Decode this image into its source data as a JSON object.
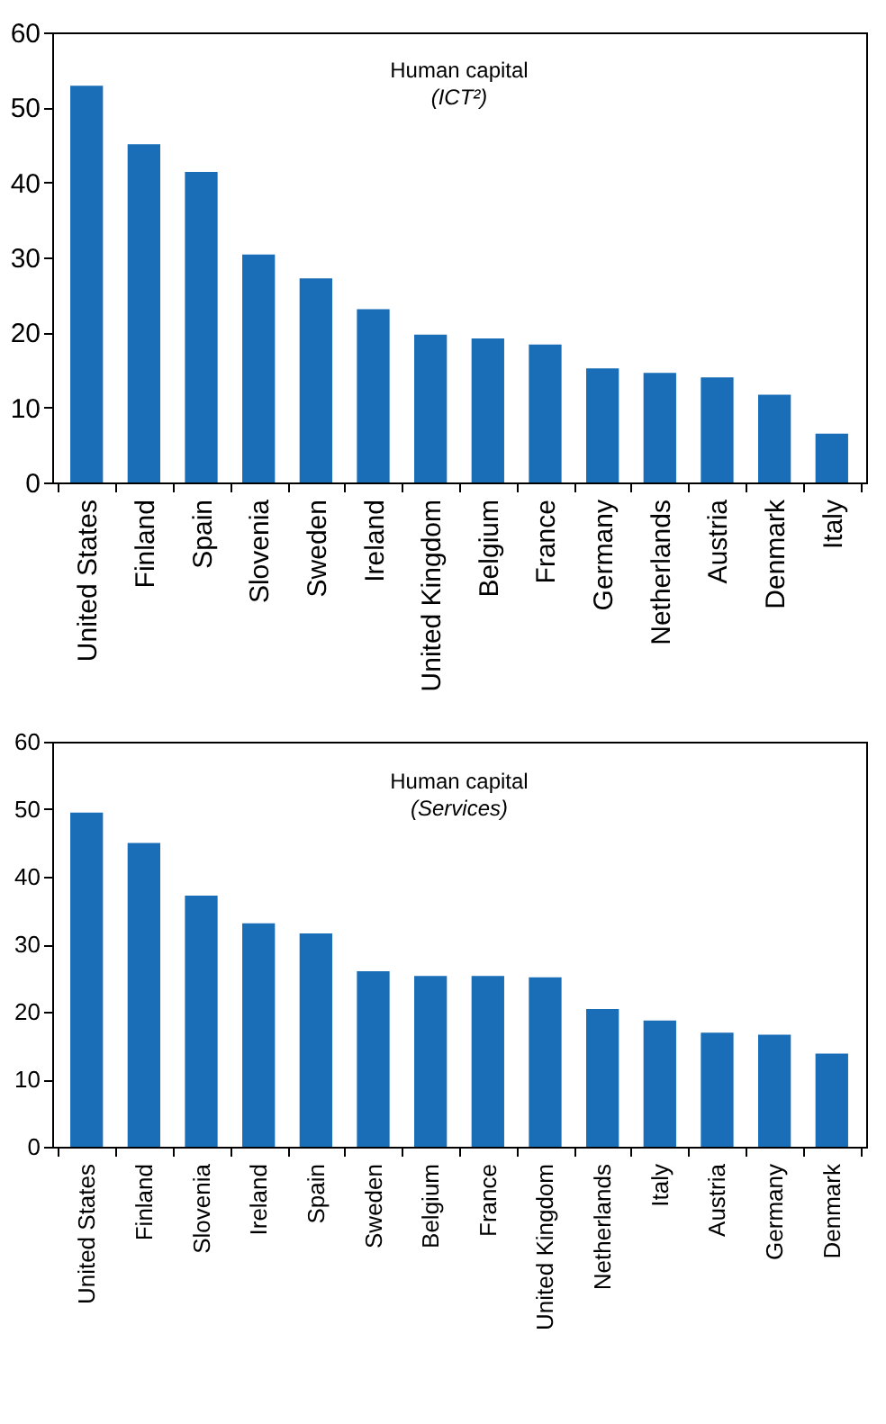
{
  "chart_data": [
    {
      "type": "bar",
      "title": "Human capital",
      "subtitle": "(ICT²)",
      "categories": [
        "United States",
        "Finland",
        "Spain",
        "Slovenia",
        "Sweden",
        "Ireland",
        "United Kingdom",
        "Belgium",
        "France",
        "Germany",
        "Netherlands",
        "Austria",
        "Denmark",
        "Italy"
      ],
      "values": [
        52.9,
        45.1,
        41.4,
        30.4,
        27.2,
        23.1,
        19.7,
        19.2,
        18.4,
        15.2,
        14.6,
        14.0,
        11.7,
        6.5
      ],
      "color": "#1a6eb7",
      "ylim": [
        0,
        60
      ],
      "yticks": [
        0,
        10,
        20,
        30,
        40,
        50,
        60
      ]
    },
    {
      "type": "bar",
      "title": "Human capital",
      "subtitle": "(Services)",
      "categories": [
        "United States",
        "Finland",
        "Slovenia",
        "Ireland",
        "Spain",
        "Sweden",
        "Belgium",
        "France",
        "United Kingdom",
        "Netherlands",
        "Italy",
        "Austria",
        "Germany",
        "Denmark"
      ],
      "values": [
        49.5,
        45.0,
        37.2,
        33.1,
        31.6,
        26.0,
        25.3,
        25.3,
        25.1,
        20.4,
        18.7,
        16.9,
        16.6,
        13.8
      ],
      "color": "#1a6eb7",
      "ylim": [
        0,
        60
      ],
      "yticks": [
        0,
        10,
        20,
        30,
        40,
        50,
        60
      ]
    }
  ]
}
